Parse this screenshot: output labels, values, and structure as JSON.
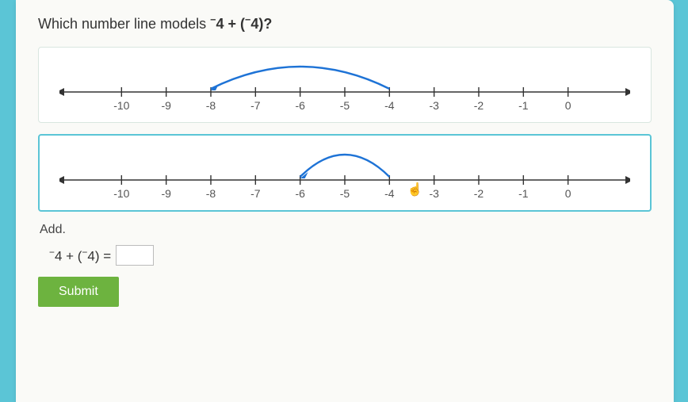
{
  "question": {
    "prefix": "Which number line models ",
    "expr_html": "<span class='neg'>−</span>4 + (<span class='neg'>−</span>4)?"
  },
  "numberline": {
    "ticks": [
      -10,
      -9,
      -8,
      -7,
      -6,
      -5,
      -4,
      -3,
      -2,
      -1,
      0
    ],
    "xlim": [
      -11,
      1
    ],
    "axis_color": "#333333",
    "tick_color": "#333333",
    "label_color": "#555555",
    "arc_color": "#1e73d6",
    "arc_width": 2.4,
    "label_fontsize": 14
  },
  "optionA": {
    "selected": false,
    "arc_from": -4,
    "arc_to": -8
  },
  "optionB": {
    "selected": true,
    "arc_from": -4,
    "arc_to": -6,
    "cursor_at": -3.5
  },
  "add_section": {
    "label": "Add.",
    "expr_html": "<span class='neg'>−</span>4 + (<span class='neg'>−</span>4) =",
    "answer": ""
  },
  "submit_label": "Submit"
}
